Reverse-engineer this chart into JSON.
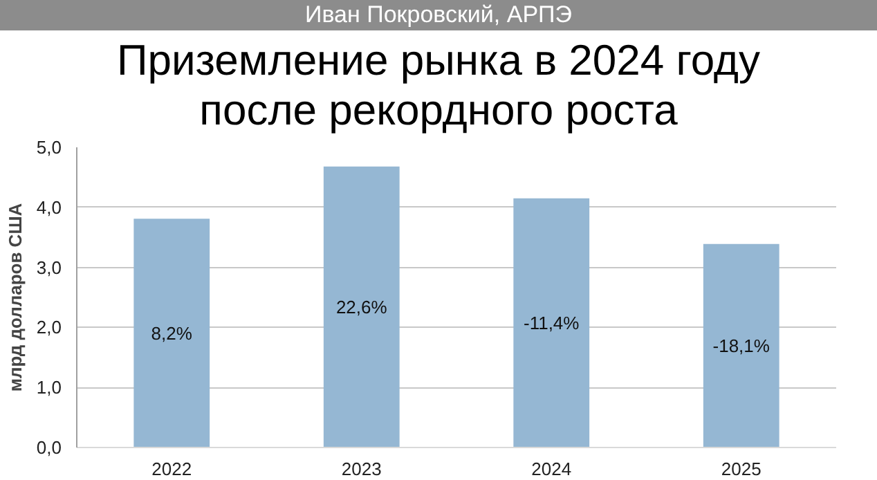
{
  "chart_data": {
    "type": "bar",
    "title": "Приземление рынка в 2024 году после рекордного роста",
    "ylabel": "млрд долларов США",
    "annotations": [
      "Иван Покровский, АРПЭ",
      "8,2%",
      "22,6%",
      "-11,4%",
      "-18,1%"
    ],
    "categories": [
      "2022",
      "2023",
      "2024",
      "2025"
    ],
    "values": [
      3.81,
      4.68,
      4.15,
      3.39
    ],
    "color": "#95b7d3",
    "ylim": [
      0,
      5
    ],
    "yticks": [
      {
        "value": 0,
        "label": "0,0"
      },
      {
        "value": 1,
        "label": "1,0"
      },
      {
        "value": 2,
        "label": "2,0"
      },
      {
        "value": 3,
        "label": "3,0"
      },
      {
        "value": 4,
        "label": "4,0"
      },
      {
        "value": 5,
        "label": "5,0"
      }
    ],
    "grid": "y"
  }
}
